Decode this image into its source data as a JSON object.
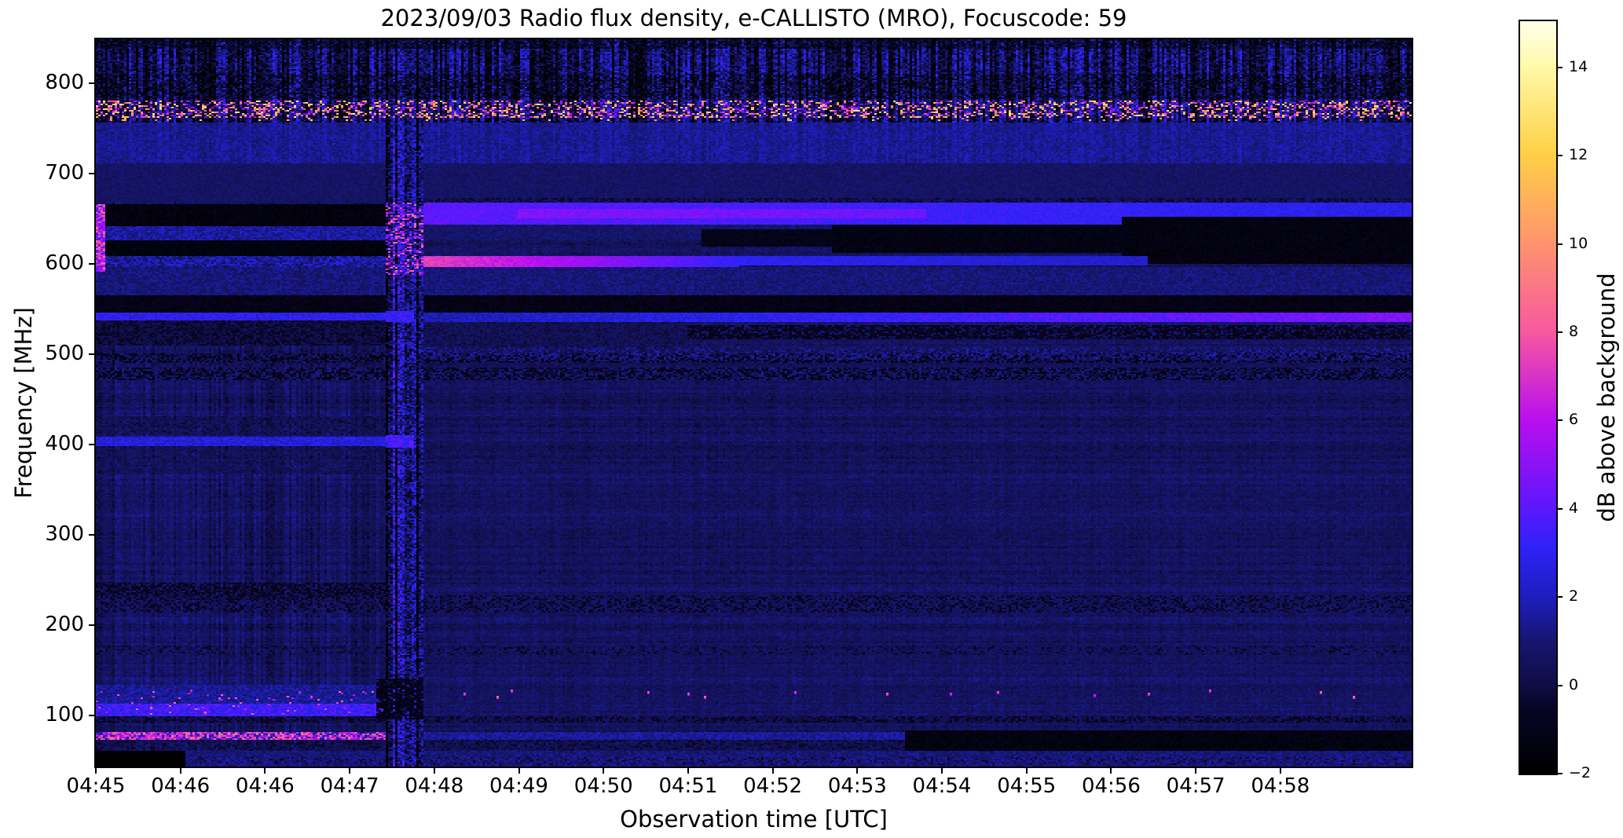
{
  "title": "2023/09/03  Radio flux density, e-CALLISTO (MRO), Focuscode: 59",
  "xlabel": "Observation time [UTC]",
  "ylabel": "Frequency [MHz]",
  "colorbar_label": "dB above background",
  "chart_data": {
    "type": "heatmap",
    "title": "2023/09/03  Radio flux density, e-CALLISTO (MRO), Focuscode: 59",
    "xlabel": "Observation time [UTC]",
    "ylabel": "Frequency [MHz]",
    "x_tick_labels": [
      "04:45",
      "04:46",
      "04:46",
      "04:47",
      "04:48",
      "04:49",
      "04:50",
      "04:51",
      "04:52",
      "04:53",
      "04:54",
      "04:55",
      "04:56",
      "04:57",
      "04:58"
    ],
    "x_tick_step_frac": 0.0643,
    "y_ticks": [
      100,
      200,
      300,
      400,
      500,
      600,
      700,
      800
    ],
    "ylim": [
      43,
      849
    ],
    "time_range": [
      "04:45",
      "05:00"
    ],
    "grid": false,
    "colorbar": {
      "label": "dB above background",
      "ticks": [
        -2,
        0,
        2,
        4,
        6,
        8,
        10,
        12,
        14
      ],
      "vmin": -2,
      "vmax": 15.05
    },
    "colormap_stops": [
      [
        0.0,
        0,
        0,
        0
      ],
      [
        0.09,
        8,
        6,
        40
      ],
      [
        0.1176,
        16,
        14,
        70
      ],
      [
        0.1765,
        22,
        22,
        112
      ],
      [
        0.235,
        30,
        30,
        190
      ],
      [
        0.3,
        45,
        35,
        248
      ],
      [
        0.3529,
        92,
        24,
        253
      ],
      [
        0.47,
        186,
        14,
        240
      ],
      [
        0.5882,
        248,
        90,
        160
      ],
      [
        0.7059,
        255,
        148,
        110
      ],
      [
        0.8235,
        255,
        208,
        70
      ],
      [
        0.9412,
        255,
        250,
        170
      ],
      [
        1.0,
        255,
        255,
        235
      ]
    ],
    "texture": {
      "base": 0.55,
      "noise": 0.95,
      "rowAmp": 0.5,
      "chanAmp": 0.3,
      "colA": 1.1,
      "colB": 0.35,
      "boundary_frac": 0.2197,
      "boundary_end_frac": 0.2495,
      "grid_cols": 558,
      "grid_rows": 463
    },
    "bands": [
      {
        "name": "top-noise",
        "f": [
          757,
          849
        ],
        "x": [
          0,
          1
        ],
        "v": [
          -1.4,
          1.9
        ],
        "cn": 1.9
      },
      {
        "name": "top-edge-dark",
        "f": [
          838,
          849
        ],
        "x": [
          0,
          1
        ],
        "v": [
          -1.6,
          0.4
        ],
        "p": 0.8,
        "cn": 0.6
      },
      {
        "name": "top-dark-row",
        "f": [
          782,
          810
        ],
        "x": [
          0,
          1
        ],
        "v": [
          -2,
          0.6
        ],
        "p": 0.6,
        "cn": 0.9
      },
      {
        "name": "top-bright-speckle",
        "f": [
          762,
          781
        ],
        "x": [
          0,
          1
        ],
        "v": [
          3.5,
          13.5
        ],
        "p": 0.34
      },
      {
        "name": "top-orange-dots",
        "f": [
          758,
          768
        ],
        "x": [
          0,
          1
        ],
        "v": [
          8,
          13
        ],
        "p": 0.05
      },
      {
        "name": "light-band-730",
        "f": [
          712,
          757
        ],
        "x": [
          0,
          1
        ],
        "v": [
          0.9,
          2.0
        ],
        "cn": 0.25
      },
      {
        "name": "calm-690",
        "f": [
          668,
          712
        ],
        "x": [
          0,
          1
        ],
        "v": [
          0.3,
          1.1
        ]
      },
      {
        "name": "b-dark-thin-670",
        "f": [
          668,
          674
        ],
        "x": [
          0.2495,
          1
        ],
        "v": [
          -0.7,
          0.3
        ],
        "p": 0.6
      },
      {
        "name": "a-black-650",
        "f": [
          641,
          666
        ],
        "x": [
          0,
          0.2197
        ],
        "v": [
          -1.9,
          -1.0
        ]
      },
      {
        "name": "a-blue-stripes-634",
        "f": [
          627,
          641
        ],
        "x": [
          0,
          0.2197
        ],
        "v": [
          0.8,
          2.4
        ]
      },
      {
        "name": "a-black-617",
        "f": [
          608,
          627
        ],
        "x": [
          0,
          0.2197
        ],
        "v": [
          -1.85,
          -1.0
        ]
      },
      {
        "name": "a-line-600",
        "f": [
          597,
          608
        ],
        "x": [
          0,
          0.2197
        ],
        "v": [
          0.3,
          2.8
        ]
      },
      {
        "name": "a-blue-580",
        "f": [
          566,
          597
        ],
        "x": [
          0,
          0.2197
        ],
        "v": [
          0.4,
          1.7
        ]
      },
      {
        "name": "a-dark-555",
        "f": [
          545,
          566
        ],
        "x": [
          0,
          0.2197
        ],
        "v": [
          -1.7,
          -0.6
        ]
      },
      {
        "name": "a-blueline-541",
        "f": [
          537,
          546
        ],
        "x": [
          0,
          0.2197
        ],
        "v": [
          2.2,
          3.6
        ]
      },
      {
        "name": "a-low-dark-520",
        "f": [
          509,
          537
        ],
        "x": [
          0,
          0.2197
        ],
        "v": [
          -0.9,
          0.5
        ]
      },
      {
        "name": "a-leftedge-bright",
        "f": [
          592,
          666
        ],
        "x": [
          0,
          0.007
        ],
        "v": [
          3,
          9
        ]
      },
      {
        "name": "a-line-402",
        "f": [
          398,
          408
        ],
        "x": [
          0,
          0.2197
        ],
        "v": [
          1.8,
          3.2
        ]
      },
      {
        "name": "a-dark-420",
        "f": [
          410,
          432
        ],
        "x": [
          0,
          0.2197
        ],
        "v": [
          -0.4,
          0.8
        ],
        "p": 0.6
      },
      {
        "name": "a-dark-380",
        "f": [
          366,
          396
        ],
        "x": [
          0,
          0.2197
        ],
        "v": [
          -0.2,
          0.9
        ],
        "p": 0.5
      },
      {
        "name": "a-dark-240",
        "f": [
          228,
          246
        ],
        "x": [
          0,
          0.2197
        ],
        "v": [
          -1.4,
          0.3
        ],
        "p": 0.8
      },
      {
        "name": "b-bright-band-655",
        "f": [
          644,
          668
        ],
        "x": [
          0.2495,
          1
        ],
        "grad": [
          4.0,
          2.7
        ],
        "v": [
          -0.35,
          0.45
        ]
      },
      {
        "name": "b-bright-core-655",
        "f": [
          650,
          661
        ],
        "x": [
          0.32,
          0.63
        ],
        "grad": [
          4.7,
          4.2
        ],
        "v": [
          -0.3,
          0.5
        ]
      },
      {
        "name": "b-mid-635",
        "f": [
          626,
          644
        ],
        "x": [
          0.2495,
          1
        ],
        "v": [
          0.3,
          1.3
        ]
      },
      {
        "name": "b-wedge0",
        "f": [
          620,
          638
        ],
        "x": [
          0.46,
          0.56
        ],
        "v": [
          -1.5,
          -0.6
        ]
      },
      {
        "name": "b-wedge1",
        "f": [
          612,
          644
        ],
        "x": [
          0.56,
          0.78
        ],
        "v": [
          -1.7,
          -0.8
        ]
      },
      {
        "name": "b-wedge2",
        "f": [
          600,
          652
        ],
        "x": [
          0.78,
          1
        ],
        "v": [
          -1.8,
          -0.9
        ]
      },
      {
        "name": "b-line600-hot",
        "f": [
          597,
          609
        ],
        "x": [
          0.2495,
          0.37
        ],
        "grad": [
          7.4,
          5.4
        ],
        "v": [
          -0.4,
          0.4
        ]
      },
      {
        "name": "b-line600-fade",
        "f": [
          597,
          609
        ],
        "x": [
          0.37,
          0.49
        ],
        "grad": [
          5.4,
          3.1
        ],
        "v": [
          -0.35,
          0.35
        ]
      },
      {
        "name": "b-line600-dim",
        "f": [
          598,
          608
        ],
        "x": [
          0.49,
          0.8
        ],
        "grad": [
          3.0,
          2.2
        ],
        "v": [
          -0.3,
          0.3
        ]
      },
      {
        "name": "b-blue-580",
        "f": [
          566,
          597
        ],
        "x": [
          0.2495,
          1
        ],
        "v": [
          0.5,
          1.6
        ]
      },
      {
        "name": "b-black-556",
        "f": [
          546,
          566
        ],
        "x": [
          0.2495,
          1
        ],
        "v": [
          -1.7,
          -0.7
        ]
      },
      {
        "name": "b-growline-541",
        "f": [
          536,
          546
        ],
        "x": [
          0.2495,
          1
        ],
        "grad": [
          1.8,
          4.7
        ],
        "v": [
          -0.5,
          0.7
        ]
      },
      {
        "name": "b-darkzone-520",
        "f": [
          506,
          536
        ],
        "x": [
          0.2495,
          0.45
        ],
        "v": [
          -0.3,
          0.9
        ]
      },
      {
        "name": "b-darkrows-524",
        "f": [
          516,
          532
        ],
        "x": [
          0.45,
          1
        ],
        "v": [
          -1.3,
          -0.2
        ],
        "p": 0.75
      },
      {
        "name": "speckle-495",
        "f": [
          490,
          501
        ],
        "x": [
          0,
          1
        ],
        "v": [
          -1.6,
          1.3
        ]
      },
      {
        "name": "speckle-478",
        "f": [
          472,
          485
        ],
        "x": [
          0,
          1
        ],
        "v": [
          -1.6,
          1.5
        ]
      },
      {
        "name": "speckle-500-right",
        "f": [
          494,
          507
        ],
        "x": [
          0.2495,
          1
        ],
        "v": [
          0.7,
          2.0
        ],
        "p": 0.35
      },
      {
        "name": "speckle-223",
        "f": [
          214,
          232
        ],
        "x": [
          0,
          1
        ],
        "v": [
          -1.1,
          1.1
        ],
        "p": 0.75
      },
      {
        "name": "speckle-171",
        "f": [
          166,
          177
        ],
        "x": [
          0,
          1
        ],
        "v": [
          -0.9,
          1.0
        ],
        "p": 0.45
      },
      {
        "name": "dark-row-95",
        "f": [
          92,
          99
        ],
        "x": [
          0,
          1
        ],
        "v": [
          -1.2,
          0.7
        ],
        "p": 0.8
      },
      {
        "name": "a-bright-band-105",
        "f": [
          99,
          112
        ],
        "x": [
          0,
          0.2197
        ],
        "v": [
          2.4,
          4.3
        ]
      },
      {
        "name": "a-band-120",
        "f": [
          112,
          134
        ],
        "x": [
          0,
          0.2197
        ],
        "v": [
          0.8,
          2.2
        ]
      },
      {
        "name": "a-band-pink-speckle",
        "f": [
          100,
          126
        ],
        "x": [
          0,
          0.2197
        ],
        "v": [
          6,
          9
        ],
        "p": 0.035
      },
      {
        "name": "a-line80-base",
        "f": [
          72,
          82
        ],
        "x": [
          0,
          0.2197
        ],
        "v": [
          1,
          3
        ]
      },
      {
        "name": "a-line80-bright",
        "f": [
          73,
          81
        ],
        "x": [
          0,
          0.2197
        ],
        "v": [
          5,
          9
        ],
        "p": 0.7
      },
      {
        "name": "b-line80-dim",
        "f": [
          73,
          81
        ],
        "x": [
          0.2495,
          0.615
        ],
        "v": [
          0.9,
          2.2
        ]
      },
      {
        "name": "dark-row-67",
        "f": [
          62,
          72
        ],
        "x": [
          0,
          0.615
        ],
        "v": [
          -0.7,
          0.6
        ],
        "p": 0.7
      },
      {
        "name": "b-blackband-70-right",
        "f": [
          60,
          83
        ],
        "x": [
          0.615,
          1
        ],
        "v": [
          -1.85,
          -0.85
        ]
      },
      {
        "name": "bottom-rows",
        "f": [
          43,
          60
        ],
        "x": [
          0,
          1
        ],
        "v": [
          0.4,
          1.7
        ]
      },
      {
        "name": "bottom-mix",
        "f": [
          44,
          53
        ],
        "x": [
          0,
          1
        ],
        "v": [
          -0.6,
          1.9
        ],
        "p": 0.5
      },
      {
        "name": "black-corner",
        "f": [
          43,
          61
        ],
        "x": [
          0,
          0.068
        ],
        "v": [
          -2,
          -1.8
        ]
      },
      {
        "name": "transition-noise",
        "f": [
          43,
          757
        ],
        "x": [
          0.2197,
          0.2495
        ],
        "v": [
          -1.6,
          2.2
        ],
        "cn": 2.4,
        "p": 0.9
      },
      {
        "name": "transition-bright-620",
        "f": [
          588,
          668
        ],
        "x": [
          0.2197,
          0.2495
        ],
        "v": [
          1.5,
          9
        ],
        "p": 0.5
      },
      {
        "name": "transition-darkblob-115",
        "f": [
          95,
          140
        ],
        "x": [
          0.213,
          0.2495
        ],
        "v": [
          -1.6,
          -0.2
        ],
        "p": 0.85
      },
      {
        "name": "transition-cap-402",
        "f": [
          396,
          410
        ],
        "x": [
          0.2197,
          0.242
        ],
        "v": [
          2.5,
          4.5
        ]
      },
      {
        "name": "transition-cap-541",
        "f": [
          536,
          548
        ],
        "x": [
          0.2197,
          0.242
        ],
        "v": [
          2.5,
          4.0
        ]
      }
    ],
    "dots": {
      "v": [
        6.5,
        9.5
      ],
      "points": [
        [
          0.072,
          128
        ],
        [
          0.094,
          120
        ],
        [
          0.155,
          126
        ],
        [
          0.163,
          121
        ],
        [
          0.28,
          125
        ],
        [
          0.305,
          122
        ],
        [
          0.315,
          128
        ],
        [
          0.42,
          126
        ],
        [
          0.45,
          124
        ],
        [
          0.462,
          121
        ],
        [
          0.53,
          127
        ],
        [
          0.6,
          124
        ],
        [
          0.648,
          125
        ],
        [
          0.685,
          126
        ],
        [
          0.758,
          123
        ],
        [
          0.8,
          125
        ],
        [
          0.845,
          129
        ],
        [
          0.93,
          126
        ],
        [
          0.955,
          122
        ]
      ]
    }
  }
}
